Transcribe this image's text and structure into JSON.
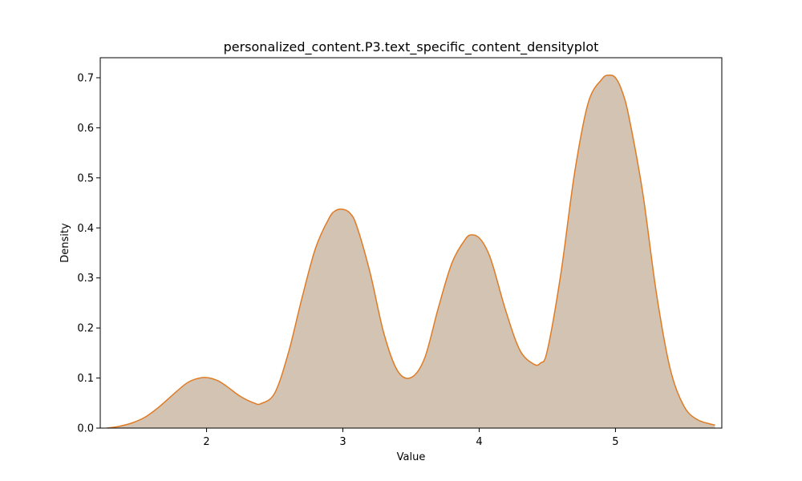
{
  "chart_data": {
    "type": "area",
    "title": "personalized_content.P3.text_specific_content_densityplot",
    "xlabel": "Value",
    "ylabel": "Density",
    "xlim": [
      1.22,
      5.78
    ],
    "ylim": [
      0,
      0.74
    ],
    "x_ticks": [
      2,
      3,
      4,
      5
    ],
    "y_ticks": [
      0.0,
      0.1,
      0.2,
      0.3,
      0.4,
      0.5,
      0.6,
      0.7
    ],
    "grid": false,
    "legend": "none",
    "colors": {
      "line": "#E07B24",
      "fill": "#D2C3B3"
    },
    "series": [
      {
        "x": [
          1.27,
          1.35,
          1.45,
          1.55,
          1.65,
          1.75,
          1.85,
          1.92,
          2.0,
          2.08,
          2.15,
          2.25,
          2.35,
          2.4,
          2.5,
          2.6,
          2.7,
          2.8,
          2.9,
          2.95,
          3.0,
          3.05,
          3.1,
          3.2,
          3.3,
          3.4,
          3.5,
          3.6,
          3.7,
          3.8,
          3.9,
          3.95,
          4.0,
          4.05,
          4.1,
          4.2,
          4.3,
          4.4,
          4.45,
          4.5,
          4.6,
          4.7,
          4.8,
          4.9,
          4.95,
          5.0,
          5.05,
          5.1,
          5.2,
          5.3,
          5.4,
          5.5,
          5.6,
          5.73
        ],
        "y": [
          0.0,
          0.003,
          0.01,
          0.022,
          0.042,
          0.066,
          0.089,
          0.098,
          0.101,
          0.095,
          0.083,
          0.063,
          0.05,
          0.049,
          0.07,
          0.15,
          0.26,
          0.36,
          0.42,
          0.435,
          0.437,
          0.43,
          0.405,
          0.31,
          0.19,
          0.115,
          0.101,
          0.14,
          0.24,
          0.33,
          0.378,
          0.386,
          0.38,
          0.36,
          0.325,
          0.23,
          0.155,
          0.128,
          0.13,
          0.155,
          0.31,
          0.51,
          0.65,
          0.697,
          0.705,
          0.7,
          0.672,
          0.62,
          0.47,
          0.27,
          0.12,
          0.045,
          0.017,
          0.006
        ]
      }
    ]
  }
}
